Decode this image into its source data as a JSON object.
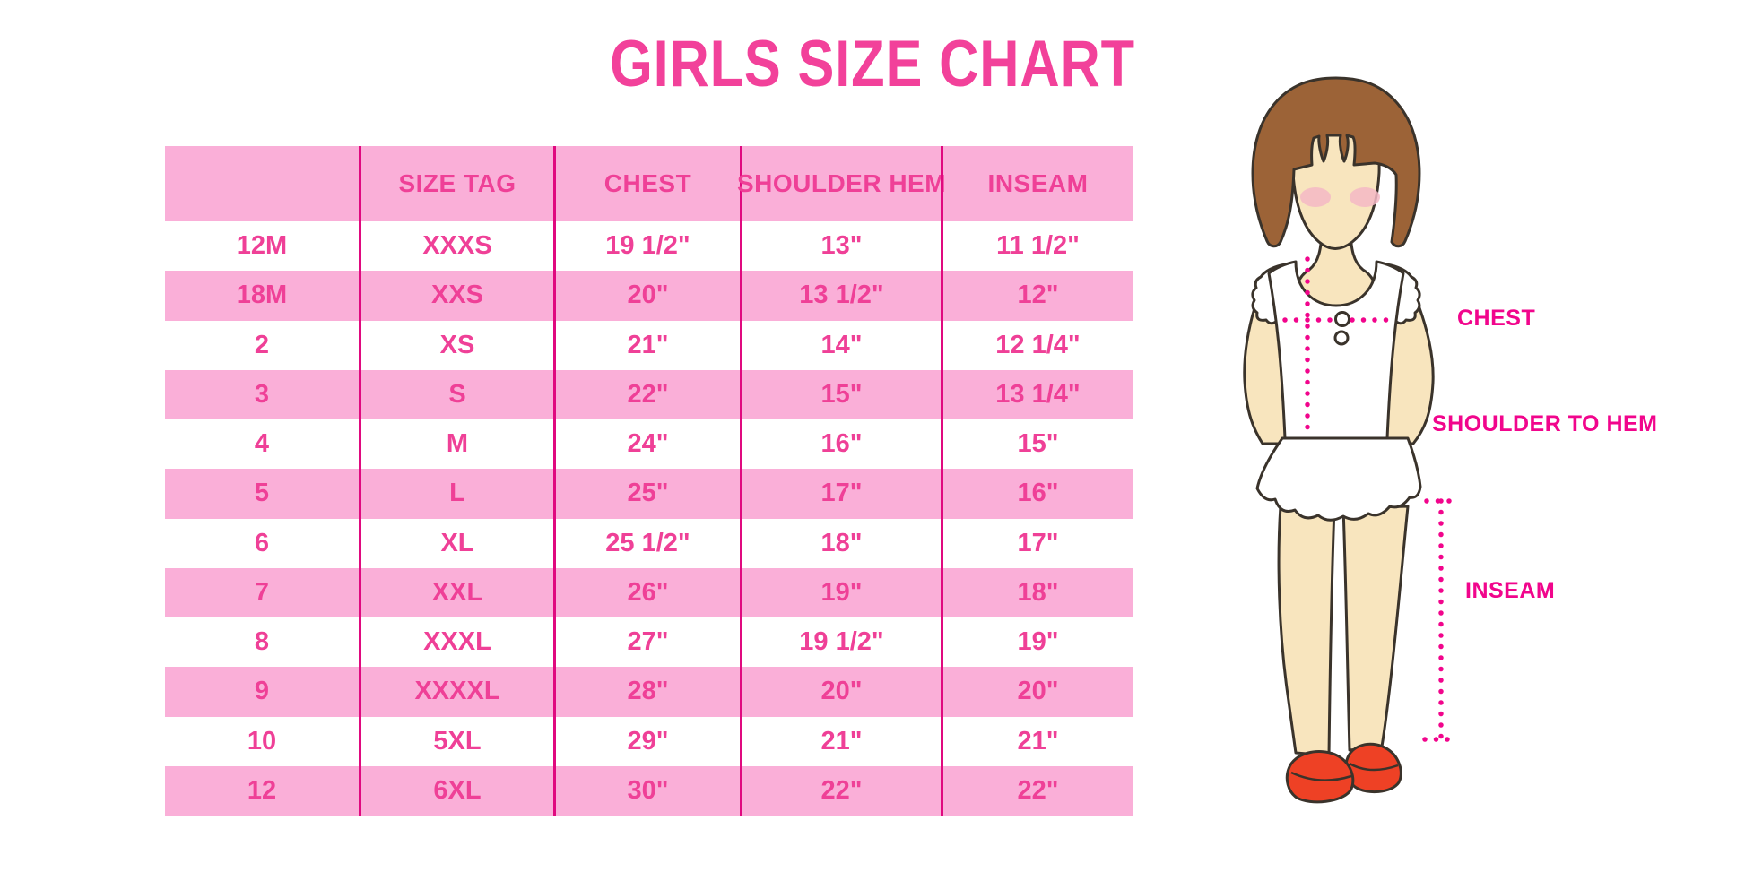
{
  "page_title": "GIRLS SIZE CHART",
  "colors": {
    "title-pink": "#F2419A",
    "header-pink": "#EF4097",
    "cell-pink": "#EF4097",
    "row-pink": "#FAAFD8",
    "divider-pink": "#E0097F",
    "label-magenta": "#F1058C",
    "dotted-line": "#F1058C",
    "hair-brown": "#9C6337",
    "skin": "#F8E5BE",
    "blush": "#F4B9C6",
    "shoe-red": "#EE4125",
    "outline": "#3A332B"
  },
  "chart_data": {
    "type": "table",
    "title": "GIRLS SIZE CHART",
    "columns": [
      "",
      "SIZE TAG",
      "CHEST",
      "SHOULDER HEM",
      "INSEAM"
    ],
    "rows": [
      [
        "12M",
        "XXXS",
        "19 1/2\"",
        "13\"",
        "11 1/2\""
      ],
      [
        "18M",
        "XXS",
        "20\"",
        "13 1/2\"",
        "12\""
      ],
      [
        "2",
        "XS",
        "21\"",
        "14\"",
        "12 1/4\""
      ],
      [
        "3",
        "S",
        "22\"",
        "15\"",
        "13 1/4\""
      ],
      [
        "4",
        "M",
        "24\"",
        "16\"",
        "15\""
      ],
      [
        "5",
        "L",
        "25\"",
        "17\"",
        "16\""
      ],
      [
        "6",
        "XL",
        "25 1/2\"",
        "18\"",
        "17\""
      ],
      [
        "7",
        "XXL",
        "26\"",
        "19\"",
        "18\""
      ],
      [
        "8",
        "XXXL",
        "27\"",
        "19 1/2\"",
        "19\""
      ],
      [
        "9",
        "XXXXL",
        "28\"",
        "20\"",
        "20\""
      ],
      [
        "10",
        "5XL",
        "29\"",
        "21\"",
        "21\""
      ],
      [
        "12",
        "6XL",
        "30\"",
        "22\"",
        "22\""
      ]
    ],
    "row_striping": "alternating white and pink rows, header row pink",
    "grid": "vertical magenta column dividers only, no horizontal lines",
    "legend_position": "none"
  },
  "figure": {
    "description": "cartoon girl with brown bob haircut, white ruffled dress, red mary-jane shoes, magenta dotted measurement lines",
    "labels": {
      "chest": "CHEST",
      "shoulder_to_hem": "SHOULDER TO HEM",
      "inseam": "INSEAM"
    }
  }
}
